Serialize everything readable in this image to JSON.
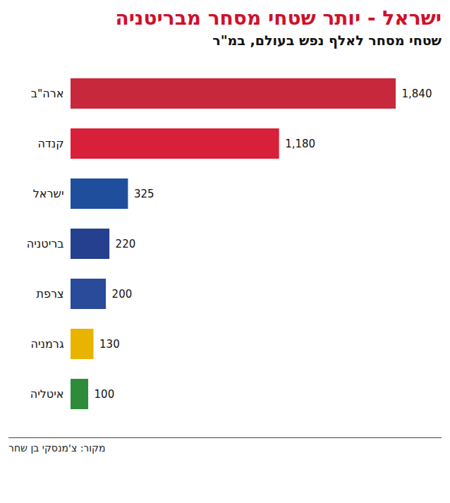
{
  "chart_data": {
    "type": "bar",
    "orientation": "horizontal",
    "title": "ישראל - יותר שטחי מסחר מבריטניה",
    "subtitle": "שטחי מסחר לאלף נפש בעולם, במ\"ר",
    "source": "מקור: צ'מנסקי בן שחר",
    "categories": [
      "ארה\"ב",
      "קנדה",
      "ישראל",
      "בריטניה",
      "צרפת",
      "גרמניה",
      "איטליה"
    ],
    "values": [
      1840,
      1180,
      325,
      220,
      200,
      130,
      100
    ],
    "value_labels": [
      "1,840",
      "1,180",
      "325",
      "220",
      "200",
      "130",
      "100"
    ],
    "colors": [
      "#c8283c",
      "#d8203a",
      "#1f4e9c",
      "#24408e",
      "#2a4a9a",
      "#e8b400",
      "#2e8b3a"
    ],
    "xlim": [
      0,
      1840
    ],
    "data_labels": true,
    "tick_labels": "y",
    "grid": false
  }
}
